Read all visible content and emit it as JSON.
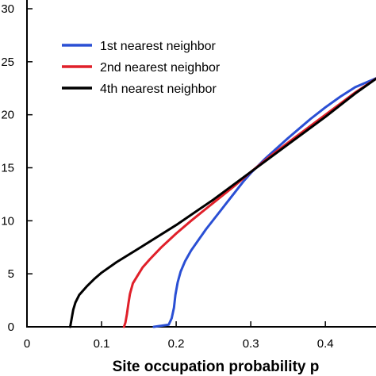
{
  "chart_data": {
    "type": "line",
    "title": "",
    "xlabel": "Site occupation probability p",
    "ylabel": "",
    "xlim": [
      0,
      0.47
    ],
    "ylim": [
      0,
      30
    ],
    "xticks": [
      0,
      0.1,
      0.2,
      0.3,
      0.4
    ],
    "xtick_labels": [
      "0",
      "0.1",
      "0.2",
      "0.3",
      "0.4"
    ],
    "yticks": [
      0,
      5,
      10,
      15,
      20,
      25,
      30
    ],
    "ytick_labels": [
      "0",
      "5",
      "10",
      "15",
      "20",
      "25",
      "30"
    ],
    "grid": false,
    "legend_position": "top-left",
    "series": [
      {
        "name": "1st nearest neighbor",
        "color": "#2a4fd4",
        "x": [
          0.17,
          0.19,
          0.194,
          0.197,
          0.199,
          0.202,
          0.206,
          0.212,
          0.22,
          0.23,
          0.24,
          0.25,
          0.26,
          0.27,
          0.28,
          0.29,
          0.3,
          0.32,
          0.35,
          0.38,
          0.4,
          0.42,
          0.44,
          0.46,
          0.47
        ],
        "y": [
          0,
          0.2,
          0.8,
          1.8,
          3.0,
          4.2,
          5.2,
          6.2,
          7.2,
          8.2,
          9.2,
          10.1,
          11.0,
          11.9,
          12.8,
          13.7,
          14.5,
          15.9,
          17.8,
          19.6,
          20.7,
          21.7,
          22.6,
          23.2,
          23.5
        ]
      },
      {
        "name": "2nd nearest neighbor",
        "color": "#e0202a",
        "x": [
          0.13,
          0.132,
          0.134,
          0.136,
          0.138,
          0.142,
          0.148,
          0.155,
          0.165,
          0.18,
          0.2,
          0.22,
          0.25,
          0.28,
          0.3,
          0.33,
          0.36,
          0.4,
          0.44,
          0.47
        ],
        "y": [
          0,
          0.4,
          1.2,
          2.2,
          3.1,
          4.1,
          4.8,
          5.6,
          6.4,
          7.5,
          8.8,
          10.0,
          11.7,
          13.4,
          14.6,
          16.3,
          17.9,
          20.0,
          22.1,
          23.5
        ]
      },
      {
        "name": "4th nearest neighbor",
        "color": "#000000",
        "x": [
          0.058,
          0.06,
          0.062,
          0.065,
          0.07,
          0.08,
          0.09,
          0.1,
          0.12,
          0.15,
          0.2,
          0.25,
          0.3,
          0.35,
          0.4,
          0.44,
          0.47
        ],
        "y": [
          0,
          0.8,
          1.6,
          2.3,
          3.0,
          3.8,
          4.5,
          5.1,
          6.1,
          7.4,
          9.6,
          12.0,
          14.6,
          17.2,
          19.8,
          22.0,
          23.5
        ]
      }
    ]
  }
}
